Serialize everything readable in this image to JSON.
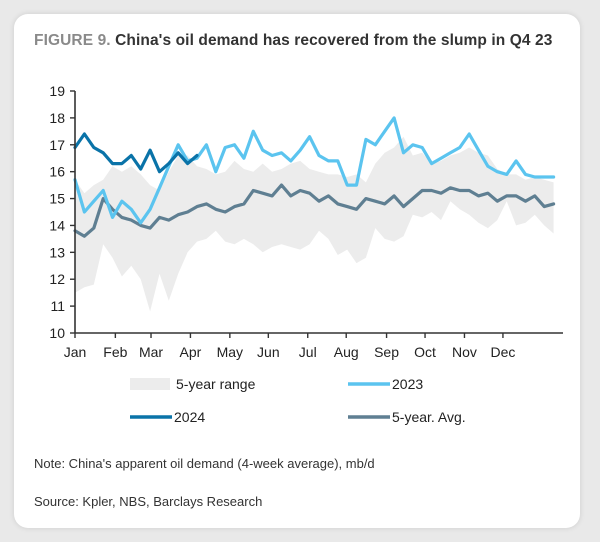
{
  "figure": {
    "label": "FIGURE 9.",
    "title": "China's oil demand has recovered from the slump in Q4 23",
    "note": "Note: China's apparent oil demand (4-week average), mb/d",
    "source": "Source: Kpler, NBS, Barclays Research"
  },
  "colors": {
    "range": "#ececec",
    "y2023": "#5bc4ef",
    "y2024": "#0a73a8",
    "avg": "#5f7f92",
    "axis": "#333333"
  },
  "chart_data": {
    "type": "line",
    "title": "China's oil demand has recovered from the slump in Q4 23",
    "xlabel": "",
    "ylabel": "",
    "units": "mb/d",
    "x_unit": "week of year",
    "xlim": [
      0,
      52
    ],
    "ylim": [
      10,
      19
    ],
    "yticks": [
      10,
      11,
      12,
      13,
      14,
      15,
      16,
      17,
      18,
      19
    ],
    "ytick_labels": [
      "10",
      "11",
      "12",
      "13",
      "14",
      "15",
      "16",
      "17",
      "18",
      "19"
    ],
    "xticks": [
      0,
      4.3,
      8.1,
      12.3,
      16.5,
      20.6,
      24.8,
      28.9,
      33.2,
      37.3,
      41.5,
      45.6
    ],
    "xtick_labels": [
      "Jan",
      "Feb",
      "Mar",
      "Apr",
      "May",
      "Jun",
      "Jul",
      "Aug",
      "Sep",
      "Oct",
      "Nov",
      "Dec"
    ],
    "grid": false,
    "legend": {
      "placement": "bottom",
      "entries": [
        "5-year range",
        "2023",
        "2024",
        "5-year. Avg."
      ]
    },
    "range": {
      "name": "5-year range",
      "x": [
        0,
        1,
        2,
        3,
        4,
        5,
        6,
        7,
        8,
        9,
        10,
        11,
        12,
        13,
        14,
        15,
        16,
        17,
        18,
        19,
        20,
        21,
        22,
        23,
        24,
        25,
        26,
        27,
        28,
        29,
        30,
        31,
        32,
        33,
        34,
        35,
        36,
        37,
        38,
        39,
        40,
        41,
        42,
        43,
        44,
        45,
        46,
        47,
        48,
        49,
        50,
        51
      ],
      "high": [
        15.7,
        15.2,
        15.5,
        15.7,
        16.2,
        16.0,
        16.2,
        15.9,
        15.5,
        15.3,
        16.0,
        16.6,
        16.6,
        16.2,
        16.1,
        15.9,
        16.0,
        16.4,
        16.1,
        16.0,
        16.3,
        16.0,
        16.1,
        16.3,
        16.4,
        16.1,
        16.0,
        15.9,
        15.9,
        15.8,
        15.9,
        15.6,
        16.3,
        16.7,
        16.9,
        17.3,
        16.6,
        16.7,
        16.3,
        16.4,
        16.6,
        16.7,
        16.9,
        16.7,
        16.6,
        16.1,
        15.9,
        15.9,
        15.7,
        15.8,
        15.7,
        15.6
      ],
      "low": [
        11.5,
        11.7,
        11.8,
        13.3,
        12.8,
        12.1,
        12.5,
        12.0,
        10.8,
        12.2,
        11.2,
        12.2,
        13.0,
        13.4,
        13.5,
        13.8,
        13.4,
        13.3,
        13.5,
        13.3,
        13.0,
        13.2,
        13.3,
        13.2,
        13.1,
        13.3,
        13.8,
        13.5,
        12.9,
        13.1,
        12.6,
        12.8,
        13.9,
        13.5,
        13.4,
        13.6,
        14.4,
        14.3,
        14.5,
        14.2,
        14.9,
        14.6,
        14.4,
        14.1,
        13.9,
        14.2,
        14.9,
        14.0,
        14.1,
        14.4,
        14.0,
        13.7
      ]
    },
    "series": [
      {
        "name": "2023",
        "x": [
          0,
          1,
          2,
          3,
          4,
          5,
          6,
          7,
          8,
          9,
          10,
          11,
          12,
          13,
          14,
          15,
          16,
          17,
          18,
          19,
          20,
          21,
          22,
          23,
          24,
          25,
          26,
          27,
          28,
          29,
          30,
          31,
          32,
          33,
          34,
          35,
          36,
          37,
          38,
          39,
          40,
          41,
          42,
          43,
          44,
          45,
          46,
          47,
          48,
          49,
          50,
          51
        ],
        "values": [
          15.7,
          14.5,
          14.9,
          15.3,
          14.3,
          14.9,
          14.6,
          14.1,
          14.6,
          15.4,
          16.2,
          17.0,
          16.4,
          16.5,
          17.0,
          16.0,
          16.9,
          17.0,
          16.5,
          17.5,
          16.8,
          16.6,
          16.7,
          16.4,
          16.8,
          17.3,
          16.6,
          16.4,
          16.4,
          15.5,
          15.5,
          17.2,
          17.0,
          17.5,
          18.0,
          16.7,
          17.0,
          16.9,
          16.3,
          16.5,
          16.7,
          16.9,
          17.4,
          16.8,
          16.2,
          16.0,
          15.9,
          16.4,
          15.9,
          15.8,
          15.8,
          15.8
        ]
      },
      {
        "name": "2024",
        "x": [
          0,
          1,
          2,
          3,
          4,
          5,
          6,
          7,
          8,
          9,
          10,
          11,
          12,
          13
        ],
        "values": [
          16.9,
          17.4,
          16.9,
          16.7,
          16.3,
          16.3,
          16.6,
          16.1,
          16.8,
          16.0,
          16.3,
          16.7,
          16.3,
          16.6
        ]
      },
      {
        "name": "5-year. Avg.",
        "x": [
          0,
          1,
          2,
          3,
          4,
          5,
          6,
          7,
          8,
          9,
          10,
          11,
          12,
          13,
          14,
          15,
          16,
          17,
          18,
          19,
          20,
          21,
          22,
          23,
          24,
          25,
          26,
          27,
          28,
          29,
          30,
          31,
          32,
          33,
          34,
          35,
          36,
          37,
          38,
          39,
          40,
          41,
          42,
          43,
          44,
          45,
          46,
          47,
          48,
          49,
          50,
          51
        ],
        "values": [
          13.8,
          13.6,
          13.9,
          15.0,
          14.6,
          14.3,
          14.2,
          14.0,
          13.9,
          14.3,
          14.2,
          14.4,
          14.5,
          14.7,
          14.8,
          14.6,
          14.5,
          14.7,
          14.8,
          15.3,
          15.2,
          15.1,
          15.5,
          15.1,
          15.3,
          15.2,
          14.9,
          15.1,
          14.8,
          14.7,
          14.6,
          15.0,
          14.9,
          14.8,
          15.1,
          14.7,
          15.0,
          15.3,
          15.3,
          15.2,
          15.4,
          15.3,
          15.3,
          15.1,
          15.2,
          14.9,
          15.1,
          15.1,
          14.9,
          15.1,
          14.7,
          14.8
        ]
      }
    ]
  }
}
